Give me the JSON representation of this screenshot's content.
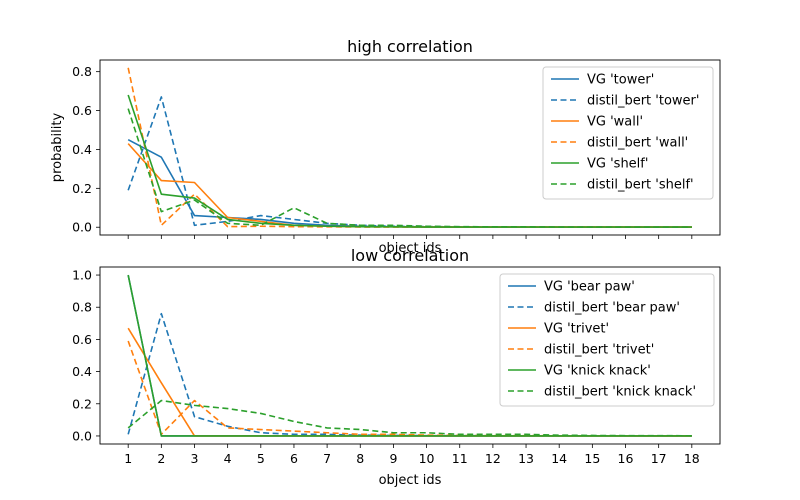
{
  "chart_data": [
    {
      "type": "line",
      "title": "high correlation",
      "xlabel": "object ids",
      "ylabel": "probability",
      "x": [
        1,
        2,
        3,
        4,
        5,
        6,
        7,
        8,
        9,
        10,
        11,
        12,
        13,
        14,
        15,
        16,
        17,
        18
      ],
      "xlim": [
        0.15,
        18.85
      ],
      "ylim": [
        -0.04,
        0.86
      ],
      "yticks": [
        0.0,
        0.2,
        0.4,
        0.6,
        0.8
      ],
      "ytick_labels": [
        "0.0",
        "0.2",
        "0.4",
        "0.6",
        "0.8"
      ],
      "show_xtick_labels": false,
      "grid": false,
      "legend_position": "upper-right",
      "series": [
        {
          "name": "VG 'tower'",
          "color": "#1f77b4",
          "dash": "solid",
          "values": [
            0.45,
            0.36,
            0.06,
            0.05,
            0.04,
            0.02,
            0.01,
            0.005,
            0.003,
            0.002,
            0.001,
            0.001,
            0.001,
            0.001,
            0.001,
            0.001,
            0.001,
            0.001
          ]
        },
        {
          "name": "distil_bert 'tower'",
          "color": "#1f77b4",
          "dash": "dashed",
          "values": [
            0.19,
            0.67,
            0.01,
            0.03,
            0.06,
            0.04,
            0.02,
            0.01,
            0.005,
            0.003,
            0.002,
            0.002,
            0.001,
            0.001,
            0.001,
            0.001,
            0.001,
            0.001
          ]
        },
        {
          "name": "VG 'wall'",
          "color": "#ff7f0e",
          "dash": "solid",
          "values": [
            0.43,
            0.24,
            0.23,
            0.05,
            0.03,
            0.01,
            0.005,
            0.003,
            0.002,
            0.001,
            0.001,
            0.001,
            0.001,
            0.001,
            0.001,
            0.001,
            0.001,
            0.001
          ]
        },
        {
          "name": "distil_bert 'wall'",
          "color": "#ff7f0e",
          "dash": "dashed",
          "values": [
            0.82,
            0.01,
            0.17,
            0.003,
            0.005,
            0.003,
            0.002,
            0.001,
            0.001,
            0.001,
            0.001,
            0.001,
            0.001,
            0.001,
            0.001,
            0.001,
            0.001,
            0.001
          ]
        },
        {
          "name": "VG 'shelf'",
          "color": "#2ca02c",
          "dash": "solid",
          "values": [
            0.68,
            0.17,
            0.15,
            0.04,
            0.02,
            0.01,
            0.005,
            0.003,
            0.002,
            0.001,
            0.001,
            0.001,
            0.001,
            0.001,
            0.001,
            0.001,
            0.001,
            0.001
          ]
        },
        {
          "name": "distil_bert 'shelf'",
          "color": "#2ca02c",
          "dash": "dashed",
          "values": [
            0.61,
            0.08,
            0.14,
            0.02,
            0.01,
            0.1,
            0.02,
            0.01,
            0.01,
            0.005,
            0.003,
            0.002,
            0.002,
            0.001,
            0.001,
            0.001,
            0.001,
            0.001
          ]
        }
      ]
    },
    {
      "type": "line",
      "title": "low correlation",
      "xlabel": "object ids",
      "ylabel": "",
      "x": [
        1,
        2,
        3,
        4,
        5,
        6,
        7,
        8,
        9,
        10,
        11,
        12,
        13,
        14,
        15,
        16,
        17,
        18
      ],
      "xlim": [
        0.15,
        18.85
      ],
      "ylim": [
        -0.05,
        1.05
      ],
      "yticks": [
        0.0,
        0.2,
        0.4,
        0.6,
        0.8,
        1.0
      ],
      "ytick_labels": [
        "0.0",
        "0.2",
        "0.4",
        "0.6",
        "0.8",
        "1.0"
      ],
      "xtick_labels": [
        "1",
        "2",
        "3",
        "4",
        "5",
        "6",
        "7",
        "8",
        "9",
        "10",
        "11",
        "12",
        "13",
        "14",
        "15",
        "16",
        "17",
        "18"
      ],
      "show_xtick_labels": true,
      "grid": false,
      "legend_position": "upper-right",
      "series": [
        {
          "name": "VG 'bear paw'",
          "color": "#1f77b4",
          "dash": "solid",
          "values": [
            1.0,
            0.0,
            0.0,
            0.0,
            0.0,
            0.0,
            0.0,
            0.0,
            0.0,
            0.0,
            0.0,
            0.0,
            0.0,
            0.0,
            0.0,
            0.0,
            0.0,
            0.0
          ]
        },
        {
          "name": "distil_bert 'bear paw'",
          "color": "#1f77b4",
          "dash": "dashed",
          "values": [
            0.01,
            0.76,
            0.12,
            0.06,
            0.02,
            0.01,
            0.01,
            0.005,
            0.003,
            0.002,
            0.002,
            0.001,
            0.001,
            0.001,
            0.001,
            0.001,
            0.001,
            0.001
          ]
        },
        {
          "name": "VG 'trivet'",
          "color": "#ff7f0e",
          "dash": "solid",
          "values": [
            0.67,
            0.33,
            0.0,
            0.0,
            0.0,
            0.0,
            0.0,
            0.0,
            0.0,
            0.0,
            0.0,
            0.0,
            0.0,
            0.0,
            0.0,
            0.0,
            0.0,
            0.0
          ]
        },
        {
          "name": "distil_bert 'trivet'",
          "color": "#ff7f0e",
          "dash": "dashed",
          "values": [
            0.59,
            0.01,
            0.22,
            0.05,
            0.04,
            0.03,
            0.02,
            0.01,
            0.01,
            0.005,
            0.003,
            0.002,
            0.002,
            0.001,
            0.001,
            0.001,
            0.001,
            0.001
          ]
        },
        {
          "name": "VG 'knick knack'",
          "color": "#2ca02c",
          "dash": "solid",
          "values": [
            1.0,
            0.0,
            0.0,
            0.0,
            0.0,
            0.0,
            0.0,
            0.0,
            0.0,
            0.0,
            0.0,
            0.0,
            0.0,
            0.0,
            0.0,
            0.0,
            0.0,
            0.0
          ]
        },
        {
          "name": "distil_bert 'knick knack'",
          "color": "#2ca02c",
          "dash": "dashed",
          "values": [
            0.05,
            0.22,
            0.19,
            0.17,
            0.14,
            0.09,
            0.05,
            0.04,
            0.02,
            0.02,
            0.01,
            0.01,
            0.01,
            0.005,
            0.003,
            0.002,
            0.002,
            0.001
          ]
        }
      ]
    }
  ]
}
